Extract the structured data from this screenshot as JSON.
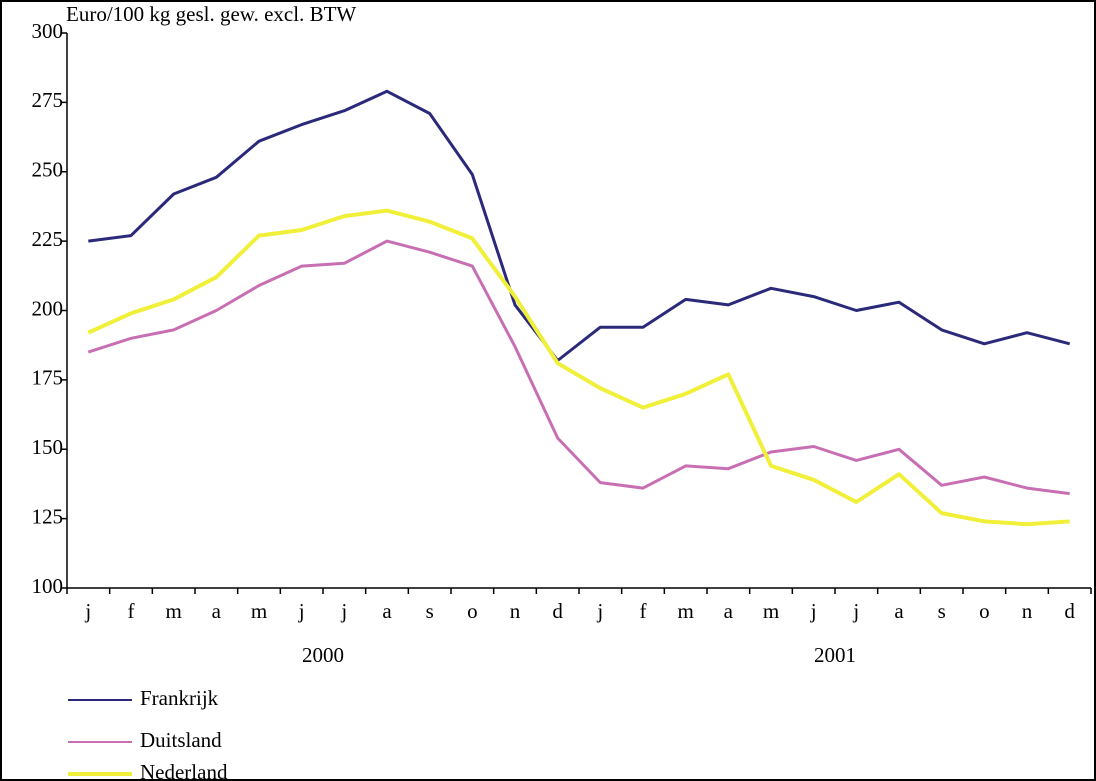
{
  "chart_data": {
    "type": "line",
    "y_axis_label": "Euro/100 kg gesl. gew. excl. BTW",
    "categories": [
      "j",
      "f",
      "m",
      "a",
      "m",
      "j",
      "j",
      "a",
      "s",
      "o",
      "n",
      "d",
      "j",
      "f",
      "m",
      "a",
      "m",
      "j",
      "j",
      "a",
      "s",
      "o",
      "n",
      "d"
    ],
    "x_group_labels": [
      "2000",
      "2001"
    ],
    "ylim": [
      100,
      300
    ],
    "yticks": [
      100,
      125,
      150,
      175,
      200,
      225,
      250,
      275,
      300
    ],
    "grid": false,
    "legend": "bottom-left",
    "series": [
      {
        "name": "Frankrijk",
        "color": "#2b2a7a",
        "values": [
          225,
          227,
          242,
          248,
          261,
          267,
          272,
          279,
          271,
          249,
          202,
          182,
          194,
          194,
          204,
          202,
          208,
          205,
          200,
          203,
          193,
          188,
          192,
          188
        ]
      },
      {
        "name": "Duitsland",
        "color": "#c86fb4",
        "values": [
          185,
          190,
          193,
          200,
          209,
          216,
          217,
          225,
          221,
          216,
          187,
          154,
          138,
          136,
          144,
          143,
          149,
          151,
          146,
          150,
          137,
          140,
          136,
          134
        ]
      },
      {
        "name": "Nederland",
        "color": "#f0f03a",
        "values": [
          192,
          199,
          204,
          212,
          227,
          229,
          234,
          236,
          232,
          226,
          205,
          181,
          172,
          165,
          170,
          177,
          144,
          139,
          131,
          141,
          127,
          124,
          123,
          124
        ]
      }
    ]
  }
}
